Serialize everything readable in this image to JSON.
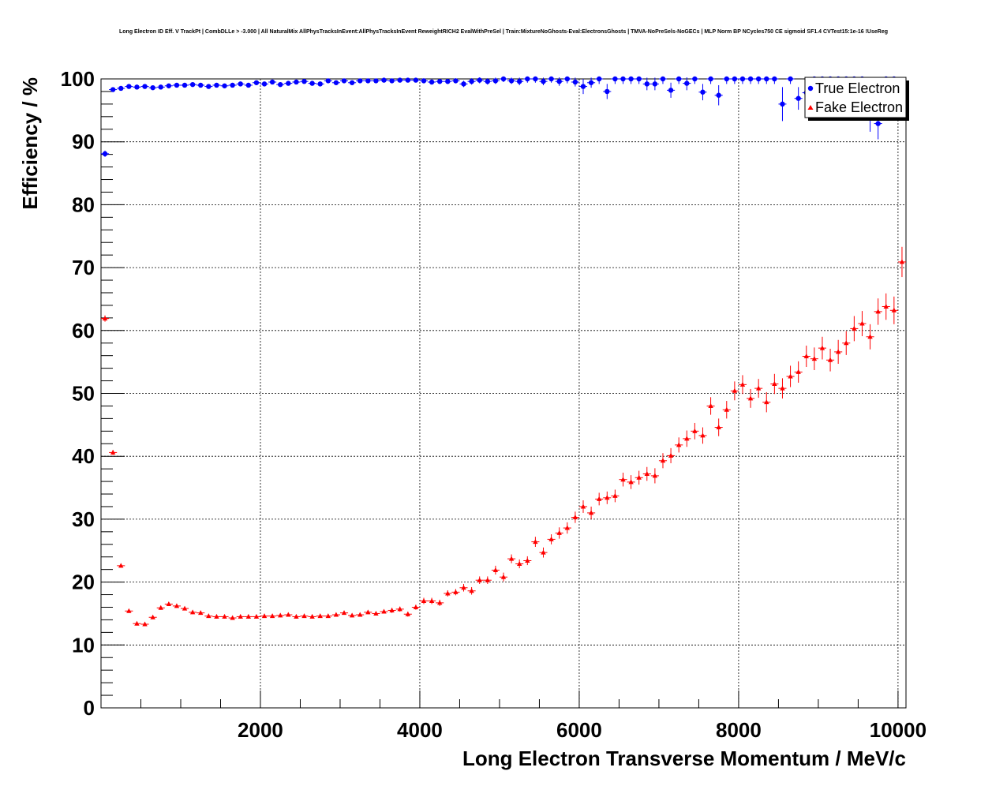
{
  "chart_data": {
    "type": "scatter",
    "title": "Long Electron ID Eff. V TrackPt | CombDLLe > -3.000 | All NaturalMix AllPhysTracksInEvent:AllPhysTracksInEvent ReweightRICH2 EvalWithPreSel | Train:MixtureNoGhosts-Eval:ElectronsGhosts | TMVA-NoPreSels-NoGECs | MLP Norm BP NCycles750 CE sigmoid SF1.4 CVTest15:1e-16 !UseReg",
    "xlabel": "Long Electron Transverse Momentum / MeV/c",
    "ylabel": "Efficiency / %",
    "xlim": [
      0,
      10100
    ],
    "ylim": [
      0,
      100
    ],
    "x_ticks": [
      2000,
      4000,
      6000,
      8000,
      10000
    ],
    "x_tick_labels": [
      "2000",
      "4000",
      "6000",
      "8000",
      "10000"
    ],
    "y_ticks": [
      0,
      10,
      20,
      30,
      40,
      50,
      60,
      70,
      80,
      90,
      100
    ],
    "y_tick_labels": [
      "0",
      "10",
      "20",
      "30",
      "40",
      "50",
      "60",
      "70",
      "80",
      "90",
      "100"
    ],
    "grid": true,
    "legend_position": "top-right",
    "series": [
      {
        "name": "True Electron",
        "color": "#0000ff",
        "marker": "circle",
        "x": [
          0,
          100,
          200,
          300,
          400,
          500,
          600,
          700,
          800,
          900,
          1000,
          1100,
          1200,
          1300,
          1400,
          1500,
          1600,
          1700,
          1800,
          1900,
          2000,
          2100,
          2200,
          2300,
          2400,
          2500,
          2600,
          2700,
          2800,
          2900,
          3000,
          3100,
          3200,
          3300,
          3400,
          3500,
          3600,
          3700,
          3800,
          3900,
          4000,
          4100,
          4200,
          4300,
          4400,
          4500,
          4600,
          4700,
          4800,
          4900,
          5000,
          5100,
          5200,
          5300,
          5400,
          5500,
          5600,
          5700,
          5800,
          5900,
          6000,
          6100,
          6200,
          6300,
          6400,
          6500,
          6600,
          6700,
          6800,
          6900,
          7000,
          7100,
          7200,
          7300,
          7400,
          7500,
          7600,
          7700,
          7800,
          7900,
          8000,
          8100,
          8200,
          8300,
          8400,
          8500,
          8600,
          8700,
          8800,
          8900,
          9000,
          9100,
          9200,
          9300,
          9400,
          9500,
          9600,
          9700,
          9800,
          9900
        ],
        "y": [
          88.1,
          98.3,
          98.5,
          98.8,
          98.7,
          98.8,
          98.6,
          98.7,
          98.9,
          99.0,
          99.0,
          99.1,
          99.0,
          98.8,
          99.0,
          98.9,
          99.0,
          99.2,
          99.0,
          99.4,
          99.2,
          99.5,
          99.1,
          99.3,
          99.5,
          99.6,
          99.3,
          99.2,
          99.7,
          99.4,
          99.7,
          99.4,
          99.7,
          99.7,
          99.7,
          99.8,
          99.7,
          99.8,
          99.8,
          99.8,
          99.7,
          99.5,
          99.6,
          99.6,
          99.7,
          99.2,
          99.6,
          99.8,
          99.6,
          99.7,
          100.0,
          99.7,
          99.6,
          100.0,
          100.0,
          99.6,
          100.0,
          99.6,
          100.0,
          99.5,
          98.8,
          99.4,
          100.0,
          98.0,
          100.0,
          100.0,
          100.0,
          100.0,
          99.2,
          99.2,
          100.0,
          98.2,
          100.0,
          99.3,
          100.0,
          97.9,
          100.0,
          97.4,
          100.0,
          100.0,
          100.0,
          100.0,
          100.0,
          100.0,
          100.0,
          96.0,
          100.0,
          96.9,
          97.8,
          100.0,
          100.0,
          100.0,
          100.0,
          100.0,
          100.0,
          100.0,
          94.1,
          92.9,
          100.0,
          100.0
        ],
        "errors": [
          0.5,
          0.3,
          0.3,
          0.3,
          0.3,
          0.3,
          0.3,
          0.3,
          0.3,
          0.3,
          0.3,
          0.3,
          0.3,
          0.3,
          0.3,
          0.3,
          0.3,
          0.3,
          0.3,
          0.3,
          0.3,
          0.3,
          0.3,
          0.3,
          0.3,
          0.3,
          0.3,
          0.3,
          0.3,
          0.3,
          0.3,
          0.3,
          0.3,
          0.3,
          0.3,
          0.3,
          0.3,
          0.3,
          0.3,
          0.3,
          0.4,
          0.4,
          0.4,
          0.4,
          0.4,
          0.5,
          0.5,
          0.5,
          0.5,
          0.5,
          0.5,
          0.5,
          0.6,
          0.6,
          0.6,
          0.6,
          0.6,
          0.7,
          0.7,
          0.7,
          1.2,
          0.8,
          0.8,
          1.2,
          0.8,
          0.8,
          0.8,
          0.8,
          1.0,
          1.0,
          0.8,
          1.2,
          0.8,
          1.1,
          0.8,
          1.3,
          0.8,
          1.6,
          0.8,
          0.8,
          0.8,
          0.8,
          0.8,
          0.8,
          0.8,
          2.7,
          0.8,
          1.8,
          1.5,
          0.8,
          0.8,
          0.8,
          0.8,
          0.8,
          0.8,
          0.8,
          2.5,
          2.5,
          0.8,
          0.8
        ]
      },
      {
        "name": "Fake Electron",
        "color": "#ff0000",
        "marker": "triangle",
        "x": [
          0,
          100,
          200,
          300,
          400,
          500,
          600,
          700,
          800,
          900,
          1000,
          1100,
          1200,
          1300,
          1400,
          1500,
          1600,
          1700,
          1800,
          1900,
          2000,
          2100,
          2200,
          2300,
          2400,
          2500,
          2600,
          2700,
          2800,
          2900,
          3000,
          3100,
          3200,
          3300,
          3400,
          3500,
          3600,
          3700,
          3800,
          3900,
          4000,
          4100,
          4200,
          4300,
          4400,
          4500,
          4600,
          4700,
          4800,
          4900,
          5000,
          5100,
          5200,
          5300,
          5400,
          5500,
          5600,
          5700,
          5800,
          5900,
          6000,
          6100,
          6200,
          6300,
          6400,
          6500,
          6600,
          6700,
          6800,
          6900,
          7000,
          7100,
          7200,
          7300,
          7400,
          7500,
          7600,
          7700,
          7800,
          7900,
          8000,
          8100,
          8200,
          8300,
          8400,
          8500,
          8600,
          8700,
          8800,
          8900,
          9000,
          9100,
          9200,
          9300,
          9400,
          9500,
          9600,
          9700,
          9800,
          9900,
          10000
        ],
        "y": [
          61.9,
          40.6,
          22.6,
          15.4,
          13.4,
          13.3,
          14.4,
          15.9,
          16.5,
          16.2,
          15.8,
          15.2,
          15.1,
          14.6,
          14.5,
          14.5,
          14.3,
          14.5,
          14.5,
          14.5,
          14.6,
          14.6,
          14.7,
          14.8,
          14.5,
          14.6,
          14.5,
          14.6,
          14.6,
          14.8,
          15.1,
          14.7,
          14.8,
          15.2,
          15.0,
          15.3,
          15.5,
          15.7,
          14.9,
          16.0,
          17.0,
          17.0,
          16.7,
          18.2,
          18.4,
          19.1,
          18.6,
          20.3,
          20.3,
          21.9,
          20.8,
          23.7,
          22.9,
          23.4,
          26.4,
          24.7,
          26.8,
          27.8,
          28.6,
          30.3,
          32.0,
          31.0,
          33.2,
          33.4,
          33.7,
          36.3,
          35.9,
          36.6,
          37.2,
          36.9,
          39.3,
          40.1,
          41.8,
          42.8,
          44.0,
          43.3,
          48.0,
          44.6,
          47.4,
          50.4,
          51.4,
          49.2,
          50.8,
          48.6,
          51.5,
          50.8,
          52.7,
          53.4,
          55.9,
          55.5,
          57.2,
          55.3,
          56.6,
          58.0,
          60.3,
          61.1,
          59.0,
          63.0,
          63.8,
          63.2,
          70.9
        ],
        "errors": [
          0.5,
          0.4,
          0.3,
          0.3,
          0.3,
          0.3,
          0.3,
          0.3,
          0.3,
          0.3,
          0.3,
          0.3,
          0.3,
          0.3,
          0.3,
          0.3,
          0.3,
          0.3,
          0.3,
          0.3,
          0.3,
          0.3,
          0.3,
          0.3,
          0.3,
          0.3,
          0.3,
          0.3,
          0.3,
          0.3,
          0.3,
          0.3,
          0.3,
          0.3,
          0.3,
          0.3,
          0.4,
          0.4,
          0.4,
          0.4,
          0.5,
          0.5,
          0.5,
          0.5,
          0.5,
          0.6,
          0.6,
          0.6,
          0.6,
          0.7,
          0.7,
          0.7,
          0.7,
          0.7,
          0.8,
          0.8,
          0.8,
          0.9,
          0.9,
          0.9,
          1.0,
          1.0,
          1.0,
          1.0,
          1.0,
          1.1,
          1.1,
          1.1,
          1.1,
          1.2,
          1.2,
          1.2,
          1.2,
          1.3,
          1.3,
          1.3,
          1.4,
          1.4,
          1.4,
          1.5,
          1.5,
          1.5,
          1.5,
          1.6,
          1.6,
          1.6,
          1.7,
          1.7,
          1.7,
          1.8,
          1.8,
          1.8,
          1.9,
          1.9,
          2.0,
          2.0,
          2.0,
          2.1,
          2.1,
          2.2,
          2.4
        ]
      }
    ]
  }
}
